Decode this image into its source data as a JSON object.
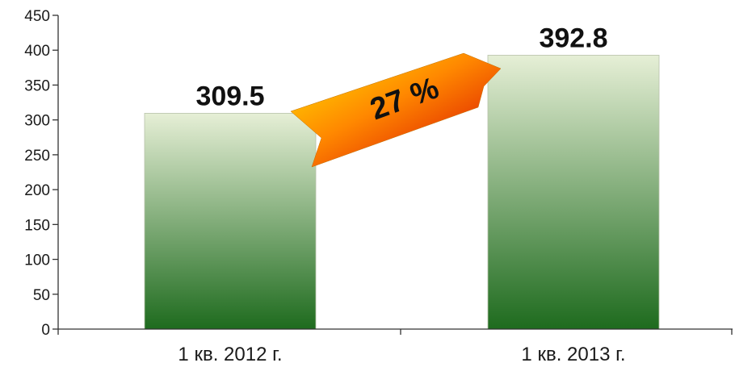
{
  "chart_data": {
    "type": "bar",
    "categories": [
      "1 кв. 2012 г.",
      "1 кв. 2013 г."
    ],
    "values": [
      309.5,
      392.8
    ],
    "value_labels": [
      "309.5",
      "392.8"
    ],
    "ylim": [
      0,
      450
    ],
    "yticks": [
      0,
      50,
      100,
      150,
      200,
      250,
      300,
      350,
      400,
      450
    ],
    "title": "",
    "xlabel": "",
    "ylabel": "",
    "grid": false,
    "annotation": {
      "text": "27 %"
    },
    "colors": {
      "bar_top": "#e6efd6",
      "bar_bottom": "#1e6b1e",
      "arrow_start": "#ffe600",
      "arrow_mid": "#ff8800",
      "arrow_end": "#d40000"
    }
  }
}
